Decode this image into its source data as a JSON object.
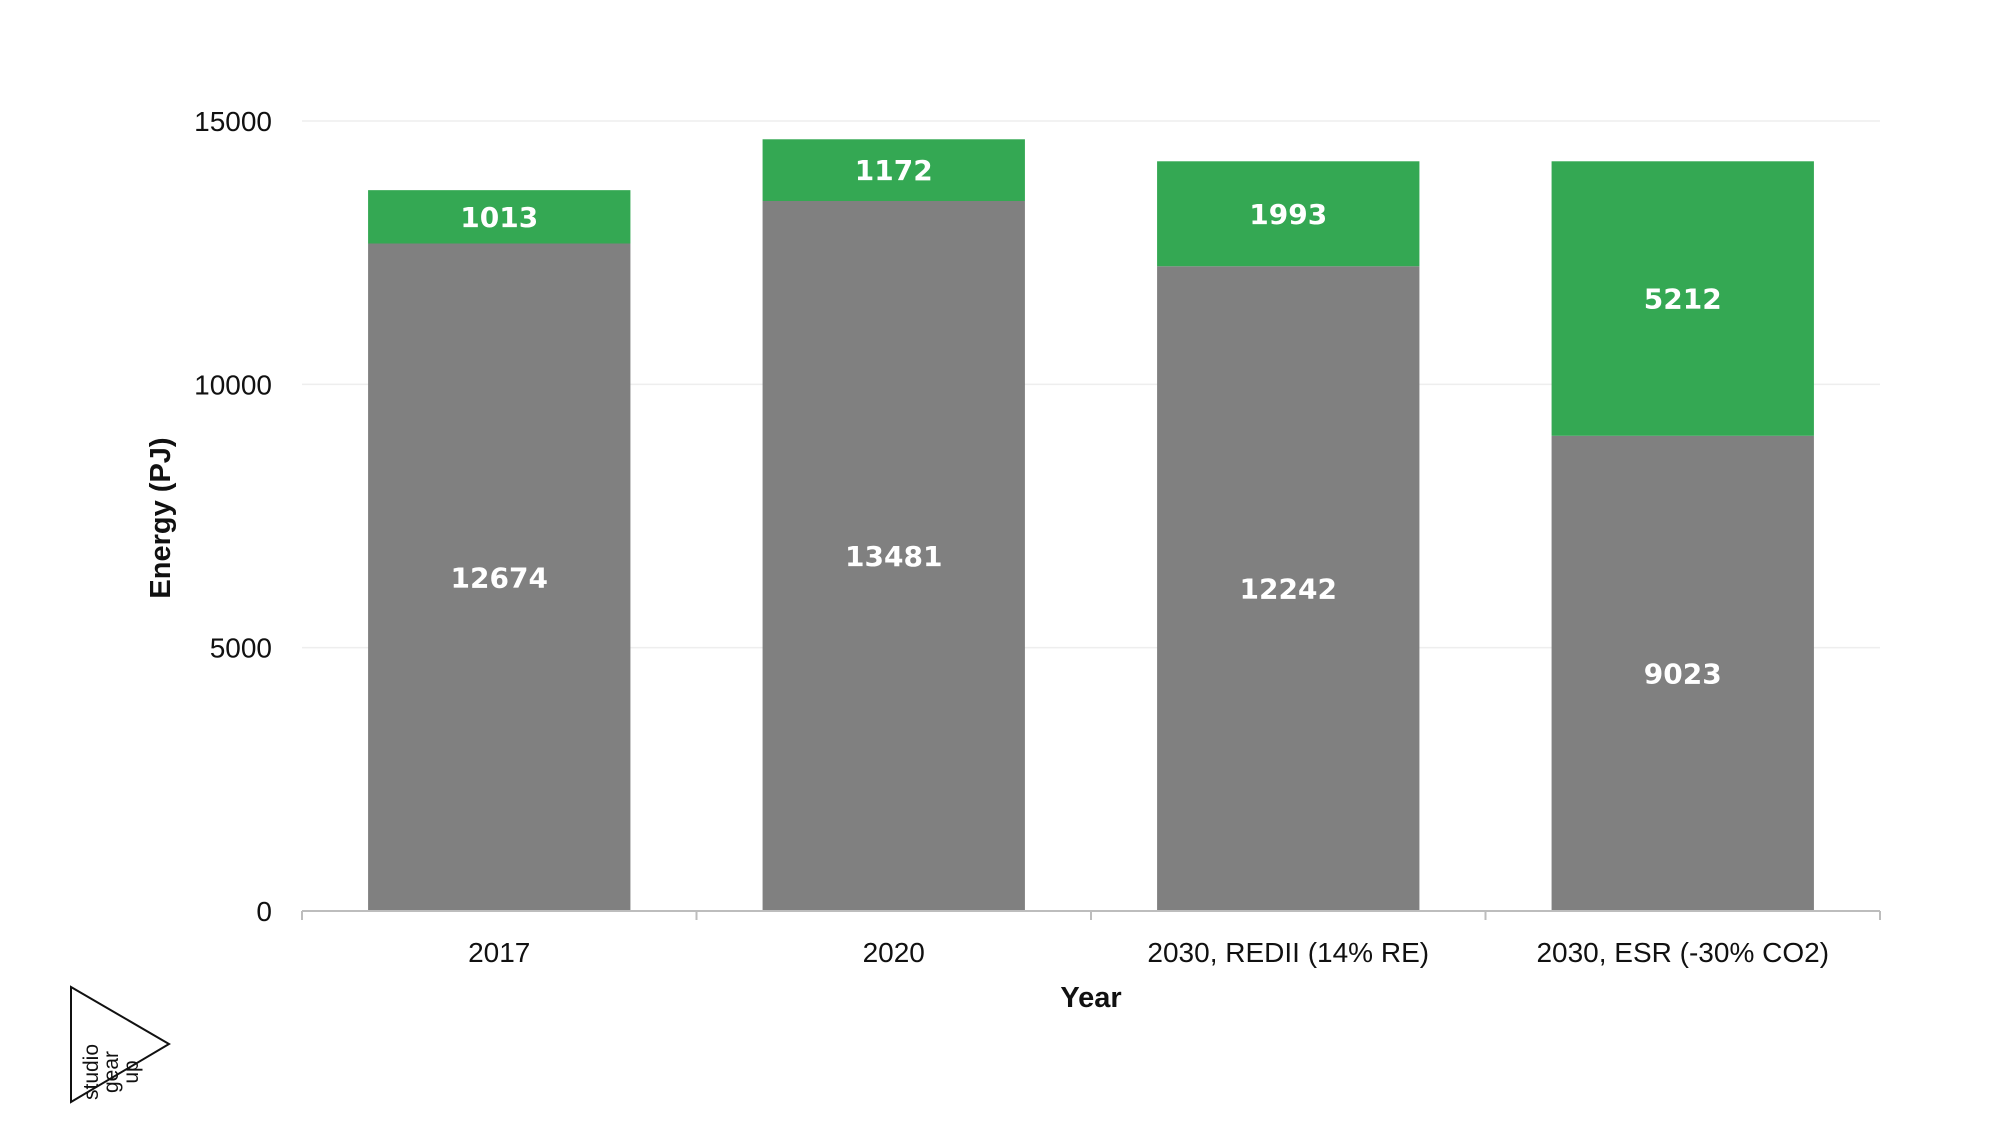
{
  "chart_data": {
    "type": "bar",
    "stacked": true,
    "categories": [
      "2017",
      "2020",
      "2030, REDII (14% RE)",
      "2030, ESR (-30% CO2)"
    ],
    "series": [
      {
        "values": [
          12674,
          13481,
          12242,
          9023
        ],
        "color": "#808080"
      },
      {
        "values": [
          1013,
          1172,
          1993,
          5212
        ],
        "color": "#34a853"
      }
    ],
    "xlabel": "Year",
    "ylabel": "Energy (PJ)",
    "ylim": [
      0,
      15000
    ],
    "yticks": [
      0,
      5000,
      10000,
      15000
    ],
    "grid": true,
    "legend": "none"
  },
  "logo": {
    "text": [
      "studio",
      "gear",
      "up"
    ]
  }
}
